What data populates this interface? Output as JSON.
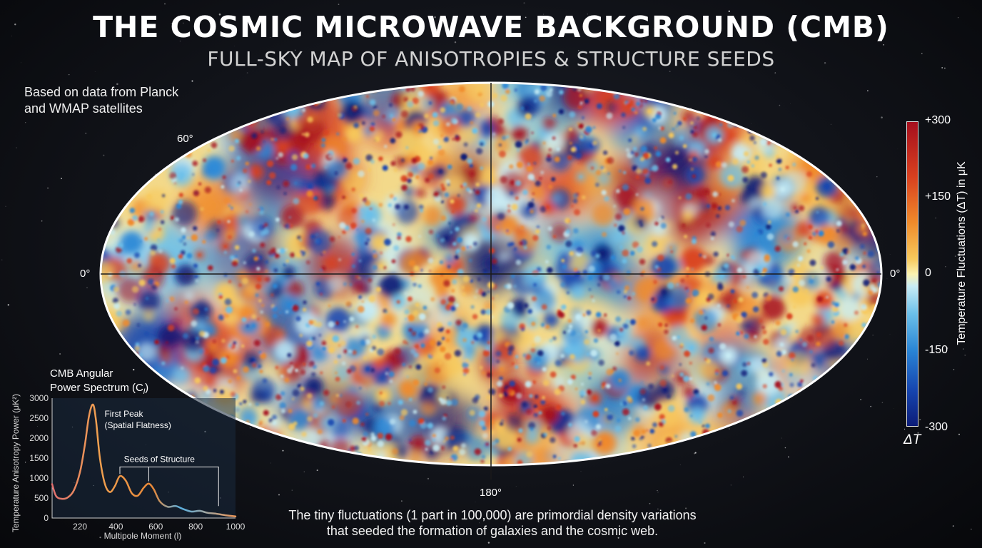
{
  "header": {
    "title": "THE COSMIC MICROWAVE BACKGROUND (CMB)",
    "subtitle": "FULL-SKY MAP OF ANISOTROPIES & STRUCTURE SEEDS"
  },
  "source_note": {
    "line1": "Based on data from Planck",
    "line2": "and WMAP satellites"
  },
  "sky_map": {
    "label_lat_60": "60°",
    "label_lon_0_left": "0°",
    "label_lon_0_right": "0°",
    "label_lon_180": "180°"
  },
  "color_scale": {
    "ticks": [
      "+300",
      "+150",
      "0",
      "-150",
      "-300"
    ],
    "title": "Temperature Fluctuations (ΔT) in μK",
    "symbol": "ΔT",
    "colors": [
      "#a50f1e",
      "#d9401f",
      "#f08a2a",
      "#f7c95c",
      "#fbf3b0",
      "#c8ecf4",
      "#6cc0ea",
      "#2a86d6",
      "#1646b0",
      "#0c1c78"
    ]
  },
  "power_spectrum": {
    "title_line1": "CMB Angular",
    "title_line2": "Power Spectrum (C",
    "title_sub": "l",
    "title_end": ")",
    "ylabel": "Temperature Anisotropy Power (μK²)",
    "xlabel": "Multipole Moment (l)",
    "annotation_first_peak_1": "First Peak",
    "annotation_first_peak_2": "(Spatial Flatness)",
    "annotation_seeds": "Seeds of Structure"
  },
  "chart_data": {
    "type": "line",
    "title": "CMB Angular Power Spectrum (Cl)",
    "xlabel": "Multipole Moment (l)",
    "ylabel": "Temperature Anisotropy Power (μK²)",
    "xlim": [
      80,
      1000
    ],
    "ylim": [
      0,
      3000
    ],
    "x_ticks": [
      "220",
      "400",
      "600",
      "800",
      "1000"
    ],
    "y_ticks": [
      "0",
      "500",
      "1000",
      "1500",
      "2000",
      "2500",
      "3000"
    ],
    "grid": false,
    "x": [
      80,
      100,
      130,
      160,
      190,
      220,
      245,
      265,
      285,
      300,
      320,
      345,
      370,
      395,
      420,
      450,
      480,
      510,
      540,
      565,
      590,
      620,
      660,
      700,
      740,
      780,
      820,
      860,
      900,
      950,
      1000
    ],
    "y": [
      850,
      550,
      480,
      520,
      700,
      1150,
      1850,
      2550,
      2840,
      2450,
      1500,
      850,
      650,
      800,
      1050,
      930,
      620,
      560,
      760,
      860,
      720,
      420,
      280,
      300,
      220,
      160,
      180,
      130,
      110,
      70,
      40
    ],
    "annotations": [
      "First Peak",
      "(Spatial Flatness)",
      "Seeds of Structure"
    ]
  },
  "caption": {
    "line1": "The tiny fluctuations (1 part in 100,000) are primordial density variations",
    "line2": "that seeded the formation of galaxies and the cosmic web."
  }
}
